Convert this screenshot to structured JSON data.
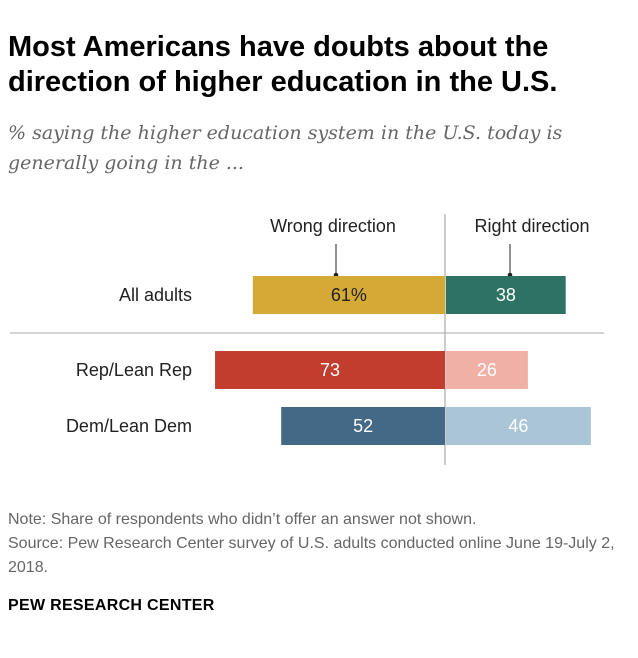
{
  "title": "Most Americans have doubts about the direction of higher education in the U.S.",
  "subtitle": "% saying the higher education system in the U.S. today is generally going in the ...",
  "note": "Note: Share of respondents who didn’t offer an answer not shown.",
  "source": "Source: Pew Research Center survey of U.S. adults conducted online June 19-July 2, 2018.",
  "footer": "PEW RESEARCH CENTER",
  "chart_data": {
    "type": "bar",
    "orientation": "horizontal-diverging",
    "categories": [
      "All adults",
      "Rep/Lean Rep",
      "Dem/Lean Dem"
    ],
    "series": [
      {
        "name": "Wrong direction",
        "values": [
          61,
          73,
          52
        ],
        "labels": [
          "61%",
          "73",
          "52"
        ],
        "colors": [
          "#d4a936",
          "#c33d2f",
          "#436987"
        ],
        "label_colors": [
          "#222222",
          "#ffffff",
          "#ffffff"
        ]
      },
      {
        "name": "Right direction",
        "values": [
          38,
          26,
          46
        ],
        "labels": [
          "38",
          "26",
          "46"
        ],
        "colors": [
          "#2e7263",
          "#f0b0a6",
          "#a9c5d6"
        ],
        "label_colors": [
          "#ffffff",
          "#ffffff",
          "#ffffff"
        ]
      }
    ]
  }
}
